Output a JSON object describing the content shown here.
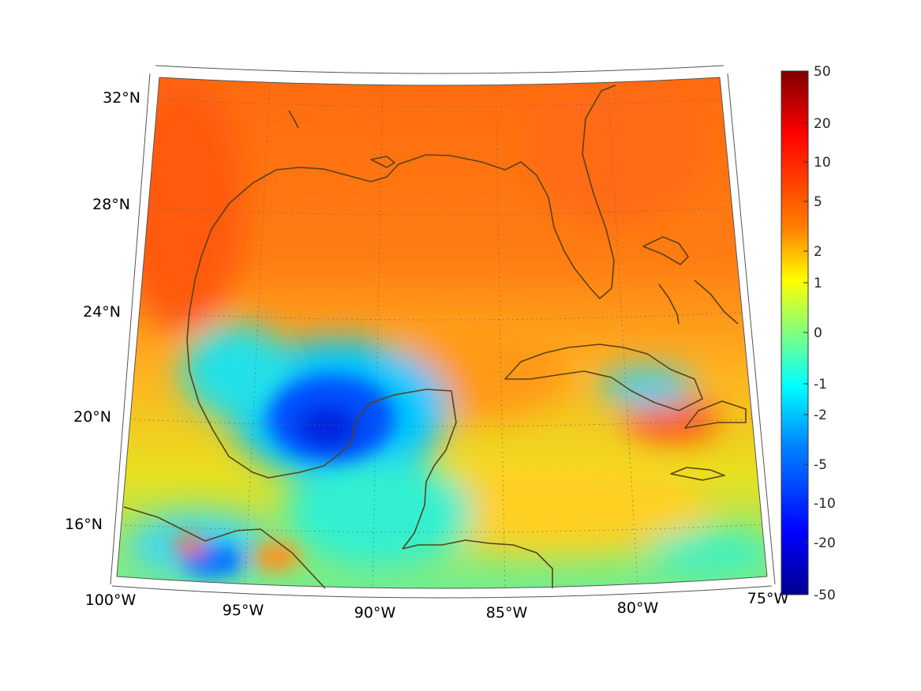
{
  "map": {
    "projection": "conic",
    "extent": {
      "lon_min": -100,
      "lon_max": -75,
      "lat_min": 14,
      "lat_max": 33
    },
    "graticule": "dotted",
    "coastline_color": "#5a4218"
  },
  "axes": {
    "lat_labels": [
      "32°N",
      "28°N",
      "24°N",
      "20°N",
      "16°N"
    ],
    "lon_labels": [
      "100°W",
      "95°W",
      "90°W",
      "85°W",
      "80°W",
      "75°W"
    ]
  },
  "colorbar": {
    "colormap": "jet",
    "scale": "symmetric-log",
    "ticks": [
      "50",
      "20",
      "10",
      "5",
      "2",
      "1",
      "0",
      "-1",
      "-2",
      "-5",
      "-10",
      "-20",
      "-50"
    ],
    "range": [
      -50,
      50
    ]
  },
  "colors": {
    "dark_red": "#7f0000",
    "red": "#ff2000",
    "orange": "#ff7a10",
    "yellow": "#ffff00",
    "cyan": "#00ffff",
    "blue": "#0040ff",
    "dark_blue": "#00008f"
  }
}
